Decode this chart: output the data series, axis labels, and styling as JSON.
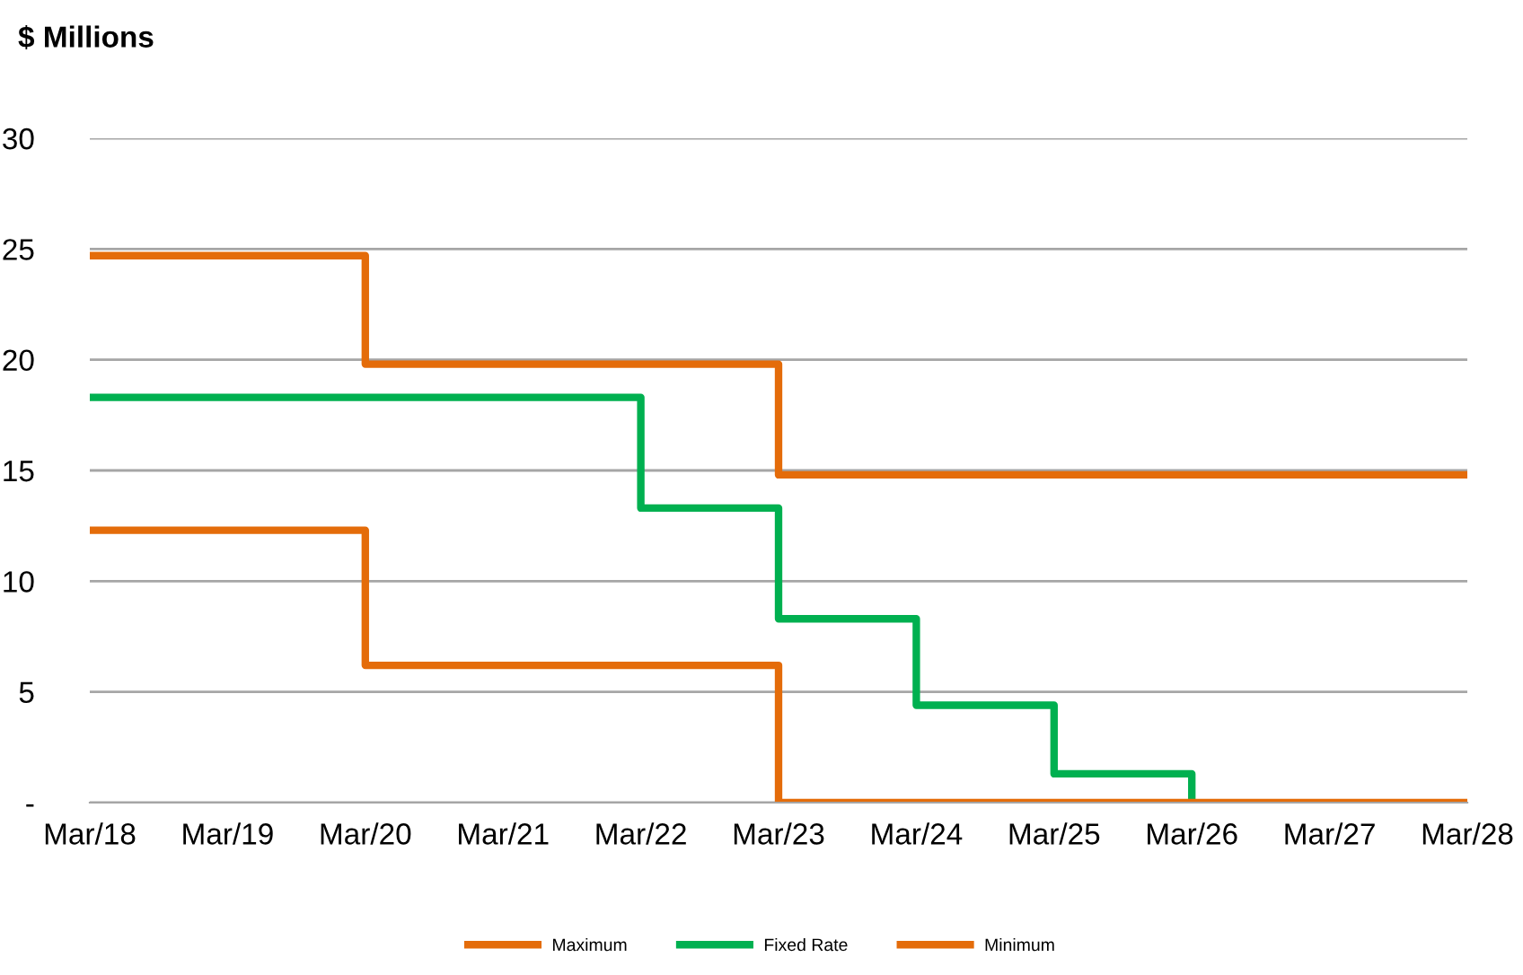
{
  "chart_data": {
    "type": "step",
    "ylabel": "$ Millions",
    "categories": [
      "Mar/18",
      "Mar/19",
      "Mar/20",
      "Mar/21",
      "Mar/22",
      "Mar/23",
      "Mar/24",
      "Mar/25",
      "Mar/26",
      "Mar/27",
      "Mar/28"
    ],
    "series": [
      {
        "name": "Maximum",
        "color": "#e46c0a",
        "values": [
          24.7,
          24.7,
          19.8,
          19.8,
          19.8,
          14.8,
          14.8,
          14.8,
          14.8,
          14.8,
          14.8
        ]
      },
      {
        "name": "Fixed Rate",
        "color": "#00b050",
        "values": [
          18.3,
          18.3,
          18.3,
          18.3,
          13.3,
          8.3,
          4.4,
          1.3,
          0,
          null,
          null
        ]
      },
      {
        "name": "Minimum",
        "color": "#e46c0a",
        "values": [
          12.3,
          12.3,
          6.2,
          6.2,
          6.2,
          0,
          0,
          0,
          0,
          0,
          0
        ]
      }
    ],
    "ylim": [
      0,
      30
    ],
    "yticks": [
      {
        "value": 0,
        "label": "-"
      },
      5,
      10,
      15,
      20,
      25,
      30
    ],
    "grid": "y",
    "legend": "bottom",
    "line_style": "solid"
  }
}
